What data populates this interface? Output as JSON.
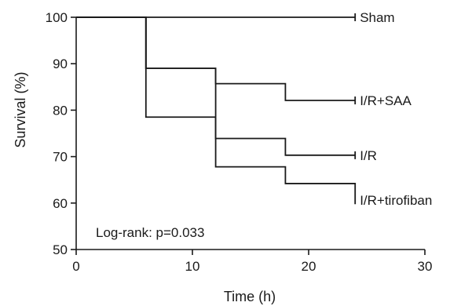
{
  "chart_data": {
    "type": "line",
    "step": true,
    "xlabel": "Time (h)",
    "ylabel": "Survival (%)",
    "xlim": [
      0,
      30
    ],
    "ylim": [
      50,
      100
    ],
    "xticks": [
      "0",
      "10",
      "20",
      "30"
    ],
    "yticks": [
      "50",
      "60",
      "70",
      "80",
      "90",
      "100"
    ],
    "grid": false,
    "legend": "none",
    "annotation": "Log-rank: p=0.033",
    "series": [
      {
        "name": "Sham",
        "x": [
          0,
          24
        ],
        "y": [
          100,
          100
        ]
      },
      {
        "name": "I/R+SAA",
        "x": [
          0,
          6,
          12,
          18,
          24
        ],
        "y": [
          100,
          89,
          85.7,
          82.1,
          82.1
        ]
      },
      {
        "name": "I/R",
        "x": [
          0,
          6,
          12,
          18,
          24
        ],
        "y": [
          100,
          89,
          73.9,
          70.3,
          70.3
        ]
      },
      {
        "name": "I/R+tirofiban",
        "x": [
          0,
          6,
          12,
          18,
          24
        ],
        "y": [
          100,
          78.5,
          67.8,
          64.2,
          60.6
        ]
      }
    ]
  }
}
